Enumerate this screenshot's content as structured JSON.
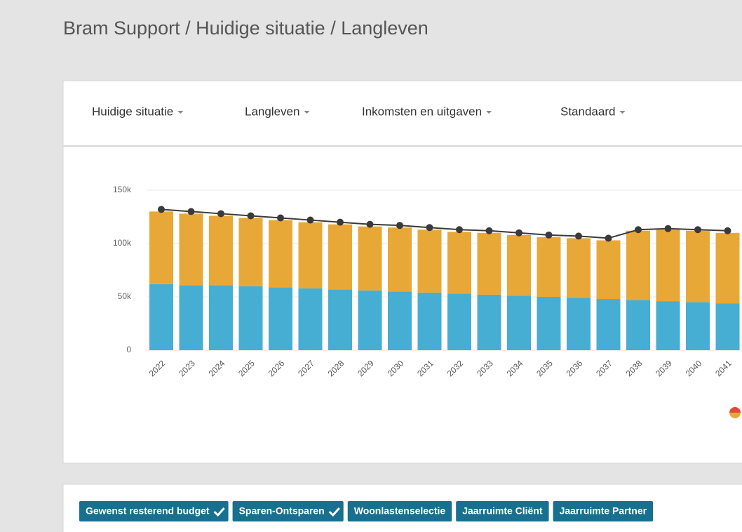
{
  "breadcrumb": "Bram Support / Huidige situatie / Langleven",
  "menu": [
    "Huidige situatie",
    "Langleven",
    "Inkomsten en uitgaven",
    "Standaard"
  ],
  "chart_data": {
    "type": "bar",
    "stacked": true,
    "categories": [
      "2022",
      "2023",
      "2024",
      "2025",
      "2026",
      "2027",
      "2028",
      "2029",
      "2030",
      "2031",
      "2032",
      "2033",
      "2034",
      "2035",
      "2036",
      "2037",
      "2038",
      "2039",
      "2040",
      "2041"
    ],
    "series": [
      {
        "color": "#46aed3",
        "values": [
          62000,
          61000,
          61000,
          60000,
          59000,
          58000,
          57000,
          56000,
          55000,
          54000,
          53000,
          52000,
          51000,
          50000,
          49000,
          48000,
          47000,
          46000,
          45000,
          44000
        ]
      },
      {
        "color": "#e8a838",
        "values": [
          68000,
          67000,
          65000,
          64000,
          63000,
          62000,
          61000,
          60000,
          60000,
          59000,
          58000,
          58000,
          57000,
          56000,
          56000,
          55000,
          65000,
          67000,
          67000,
          66000
        ]
      },
      {
        "type": "line",
        "color": "#3a3a3a",
        "values": [
          132000,
          130000,
          128000,
          126000,
          124000,
          122000,
          120000,
          118000,
          117000,
          115000,
          113000,
          112000,
          110000,
          108000,
          107000,
          105000,
          113000,
          114000,
          113000,
          112000
        ]
      }
    ],
    "ylim": [
      0,
      150000
    ],
    "yticks": [
      0,
      {
        "value": 50000,
        "label": "50k"
      },
      {
        "value": 100000,
        "label": "100k"
      },
      {
        "value": 150000,
        "label": "150k"
      }
    ],
    "grid": true
  },
  "buttons": [
    {
      "label": "Gewenst resterend budget",
      "checked": true
    },
    {
      "label": "Sparen-Ontsparen",
      "checked": true
    },
    {
      "label": "Woonlastenselectie",
      "checked": false
    },
    {
      "label": "Jaarruimte Cliënt",
      "checked": false
    },
    {
      "label": "Jaarruimte Partner",
      "checked": false
    }
  ]
}
